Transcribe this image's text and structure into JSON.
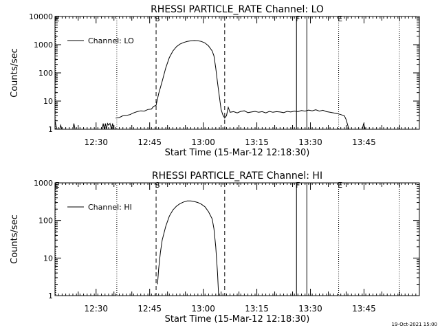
{
  "chart_data": [
    {
      "type": "line",
      "title": "RHESSI PARTICLE_RATE Channel: LO",
      "xlabel": "Start Time (15-Mar-12 12:18:30)",
      "ylabel": "Counts/sec",
      "yscale": "log",
      "ylim": [
        1,
        10000
      ],
      "xlim_minutes_after_start": [
        0,
        102
      ],
      "x_ticks": [
        {
          "label": "12:30",
          "min": 11.5
        },
        {
          "label": "12:45",
          "min": 26.5
        },
        {
          "label": "13:00",
          "min": 41.5
        },
        {
          "label": "13:15",
          "min": 56.5
        },
        {
          "label": "13:30",
          "min": 71.5
        },
        {
          "label": "13:45",
          "min": 86.5
        }
      ],
      "y_ticks": [
        {
          "label": "1",
          "value": 1
        },
        {
          "label": "10",
          "value": 10
        },
        {
          "label": "100",
          "value": 100
        },
        {
          "label": "1000",
          "value": 1000
        },
        {
          "label": "10000",
          "value": 10000
        }
      ],
      "legend": {
        "entry": "Channel: LO",
        "placement": "top-left"
      },
      "markers": [
        {
          "label": "E",
          "min": 0.2,
          "style": "dotted"
        },
        {
          "label": "",
          "min": 17.3,
          "style": "dotted"
        },
        {
          "label": "S",
          "min": 28.3,
          "style": "dashed"
        },
        {
          "label": "",
          "min": 47.5,
          "style": "dashed"
        },
        {
          "label": "F",
          "min": 67.6,
          "style": "solid"
        },
        {
          "label": "",
          "min": 70.5,
          "style": "solid"
        },
        {
          "label": "E",
          "min": 79.4,
          "style": "dotted"
        },
        {
          "label": "",
          "min": 96.4,
          "style": "dotted"
        }
      ],
      "series": [
        {
          "name": "Channel: LO",
          "segments": [
            [
              [
                0.0,
                2.0
              ],
              [
                0.3,
                1.3
              ],
              [
                0.6,
                1.0
              ]
            ],
            [
              [
                1.3,
                1.0
              ],
              [
                1.6,
                1.4
              ],
              [
                1.9,
                1.0
              ]
            ],
            [
              [
                5.0,
                1.0
              ],
              [
                5.3,
                1.6
              ],
              [
                5.6,
                1.0
              ]
            ],
            [
              [
                13.2,
                1.0
              ],
              [
                13.5,
                1.6
              ],
              [
                13.8,
                1.0
              ],
              [
                14.1,
                1.6
              ],
              [
                14.4,
                1.0
              ],
              [
                14.7,
                1.6
              ],
              [
                15.0,
                1.4
              ],
              [
                15.4,
                1.6
              ],
              [
                15.8,
                1.0
              ],
              [
                16.1,
                1.6
              ],
              [
                16.4,
                1.0
              ]
            ],
            [
              [
                17.0,
                2.5
              ],
              [
                18.0,
                2.6
              ],
              [
                19.0,
                3.0
              ],
              [
                20.0,
                3.1
              ],
              [
                21.0,
                3.3
              ],
              [
                22.0,
                3.8
              ],
              [
                23.0,
                4.2
              ],
              [
                24.0,
                4.5
              ],
              [
                25.0,
                4.4
              ],
              [
                26.0,
                5.0
              ],
              [
                27.0,
                5.2
              ],
              [
                27.6,
                6.5
              ],
              [
                28.3,
                7.0
              ],
              [
                29.0,
                18
              ],
              [
                30.0,
                50
              ],
              [
                31.0,
                150
              ],
              [
                32.0,
                350
              ],
              [
                33.0,
                600
              ],
              [
                34.0,
                850
              ],
              [
                35.0,
                1050
              ],
              [
                36.0,
                1200
              ],
              [
                37.0,
                1300
              ],
              [
                38.0,
                1370
              ],
              [
                39.0,
                1400
              ],
              [
                40.0,
                1380
              ],
              [
                41.0,
                1300
              ],
              [
                42.0,
                1150
              ],
              [
                43.0,
                900
              ],
              [
                44.0,
                600
              ],
              [
                44.5,
                400
              ],
              [
                45.0,
                150
              ],
              [
                45.5,
                45
              ],
              [
                46.0,
                15
              ],
              [
                46.5,
                5
              ],
              [
                47.0,
                3.2
              ],
              [
                47.5,
                2.5
              ],
              [
                48.0,
                3.0
              ],
              [
                48.5,
                6.0
              ],
              [
                49.0,
                4.0
              ],
              [
                50.0,
                4.2
              ],
              [
                51.0,
                3.8
              ],
              [
                52.0,
                4.3
              ],
              [
                53.0,
                4.5
              ],
              [
                54.0,
                3.9
              ],
              [
                55.0,
                4.1
              ],
              [
                56.0,
                4.3
              ],
              [
                57.0,
                4.0
              ],
              [
                58.0,
                4.2
              ],
              [
                59.0,
                3.8
              ],
              [
                60.0,
                4.3
              ],
              [
                61.0,
                4.0
              ],
              [
                62.0,
                4.2
              ],
              [
                63.0,
                4.1
              ],
              [
                64.0,
                3.9
              ],
              [
                65.0,
                4.3
              ],
              [
                66.0,
                4.1
              ],
              [
                67.0,
                4.4
              ],
              [
                68.0,
                4.2
              ],
              [
                69.0,
                4.6
              ],
              [
                70.0,
                4.4
              ],
              [
                71.0,
                4.8
              ],
              [
                72.0,
                4.5
              ],
              [
                73.0,
                4.9
              ],
              [
                74.0,
                4.4
              ],
              [
                75.0,
                4.7
              ],
              [
                76.0,
                4.2
              ],
              [
                77.0,
                4.0
              ],
              [
                78.0,
                3.8
              ],
              [
                79.0,
                3.6
              ],
              [
                80.0,
                3.3
              ],
              [
                81.0,
                3.0
              ],
              [
                81.5,
                2.2
              ],
              [
                82.0,
                1.3
              ],
              [
                82.3,
                1.0
              ]
            ],
            [
              [
                86.0,
                1.0
              ],
              [
                86.4,
                1.6
              ],
              [
                86.8,
                1.0
              ]
            ]
          ]
        }
      ]
    },
    {
      "type": "line",
      "title": "RHESSI PARTICLE_RATE Channel: HI",
      "xlabel": "Start Time (15-Mar-12 12:18:30)",
      "ylabel": "Counts/sec",
      "yscale": "log",
      "ylim": [
        1,
        1000
      ],
      "xlim_minutes_after_start": [
        0,
        102
      ],
      "x_ticks": [
        {
          "label": "12:30",
          "min": 11.5
        },
        {
          "label": "12:45",
          "min": 26.5
        },
        {
          "label": "13:00",
          "min": 41.5
        },
        {
          "label": "13:15",
          "min": 56.5
        },
        {
          "label": "13:30",
          "min": 71.5
        },
        {
          "label": "13:45",
          "min": 86.5
        }
      ],
      "y_ticks": [
        {
          "label": "1",
          "value": 1
        },
        {
          "label": "10",
          "value": 10
        },
        {
          "label": "100",
          "value": 100
        },
        {
          "label": "1000",
          "value": 1000
        }
      ],
      "legend": {
        "entry": "Channel: HI",
        "placement": "top-left"
      },
      "markers": [
        {
          "label": "E",
          "min": 0.2,
          "style": "dotted"
        },
        {
          "label": "",
          "min": 17.3,
          "style": "dotted"
        },
        {
          "label": "S",
          "min": 28.3,
          "style": "dashed"
        },
        {
          "label": "",
          "min": 47.5,
          "style": "dashed"
        },
        {
          "label": "F",
          "min": 67.6,
          "style": "solid"
        },
        {
          "label": "",
          "min": 70.5,
          "style": "solid"
        },
        {
          "label": "E",
          "min": 79.4,
          "style": "dotted"
        },
        {
          "label": "",
          "min": 96.4,
          "style": "dotted"
        }
      ],
      "series": [
        {
          "name": "Channel: HI",
          "segments": [
            [
              [
                28.7,
                2.0
              ],
              [
                29.0,
                5
              ],
              [
                29.5,
                14
              ],
              [
                30.0,
                30
              ],
              [
                31.0,
                70
              ],
              [
                32.0,
                130
              ],
              [
                33.0,
                190
              ],
              [
                34.0,
                240
              ],
              [
                35.0,
                280
              ],
              [
                36.0,
                310
              ],
              [
                37.0,
                330
              ],
              [
                38.0,
                330
              ],
              [
                39.0,
                320
              ],
              [
                40.0,
                300
              ],
              [
                41.0,
                270
              ],
              [
                42.0,
                230
              ],
              [
                43.0,
                170
              ],
              [
                44.0,
                110
              ],
              [
                44.5,
                60
              ],
              [
                45.0,
                20
              ],
              [
                45.5,
                4
              ],
              [
                45.8,
                1.0
              ]
            ]
          ]
        }
      ]
    }
  ],
  "footer": {
    "timestamp": "19-Oct-2021 15:00"
  }
}
